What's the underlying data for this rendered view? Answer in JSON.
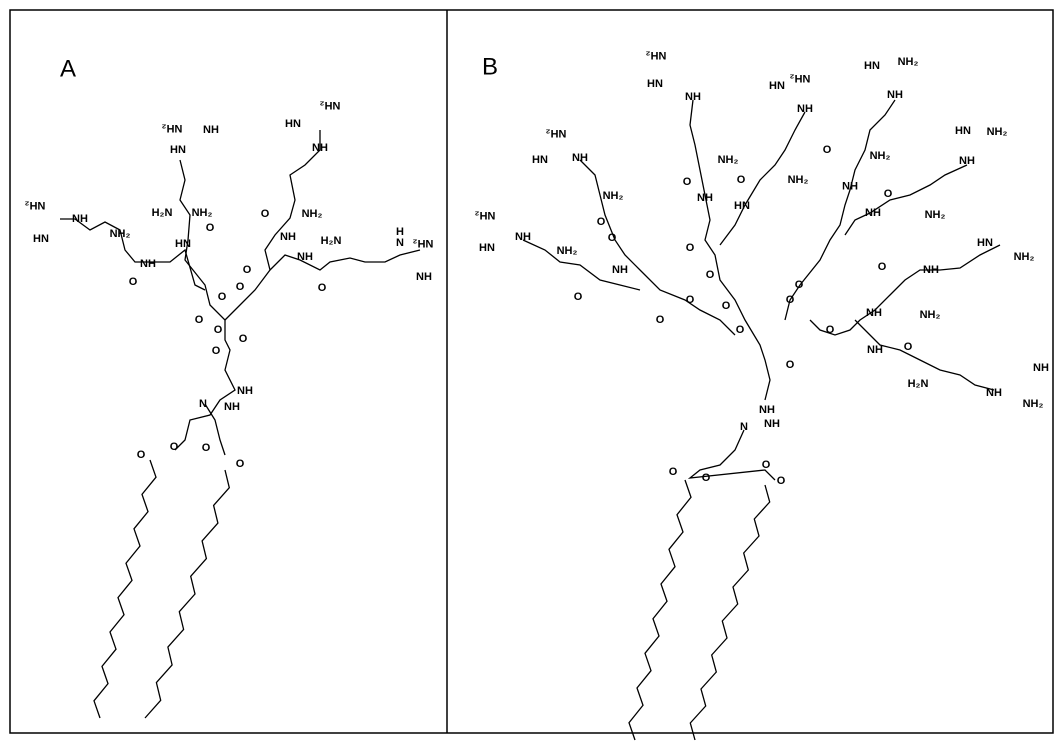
{
  "panels": [
    {
      "label": "A",
      "atoms": [
        "NH₂",
        "NH",
        "HN",
        "H₂N",
        "NH₂",
        "HN",
        "O",
        "NH",
        "O",
        "NH₂",
        "NH",
        "HN",
        "NH₂",
        "NH₂",
        "HN",
        "NH",
        "O",
        "NH₂",
        "NH",
        "O",
        "O",
        "NH",
        "H₂N",
        "O",
        "H",
        "N",
        "NH₂",
        "NH",
        "O",
        "O",
        "O",
        "O",
        "O",
        "NH",
        "N",
        "NH",
        "O",
        "O",
        "O",
        "O"
      ]
    },
    {
      "label": "B",
      "atoms": [
        "NH₂",
        "HN",
        "NH",
        "O",
        "NH₂",
        "NH",
        "HN",
        "NH₂",
        "NH",
        "NH₂",
        "O",
        "HN",
        "HN",
        "NH₂",
        "NH",
        "O",
        "NH₂",
        "HN",
        "HN",
        "NH₂",
        "NH",
        "NH",
        "O",
        "NH₂",
        "NH₂",
        "HN",
        "NH",
        "NH₂",
        "O",
        "NH₂",
        "HN",
        "NH",
        "NH₂",
        "NH",
        "O",
        "O",
        "O",
        "O",
        "O",
        "O",
        "O",
        "O",
        "O",
        "O",
        "O",
        "O",
        "HN",
        "NH₂",
        "NH",
        "O",
        "NH₂",
        "NH",
        "NH",
        "O",
        "H₂N",
        "NH",
        "NH",
        "NH₂",
        "NH",
        "N",
        "NH",
        "O",
        "O",
        "O",
        "O"
      ]
    }
  ]
}
